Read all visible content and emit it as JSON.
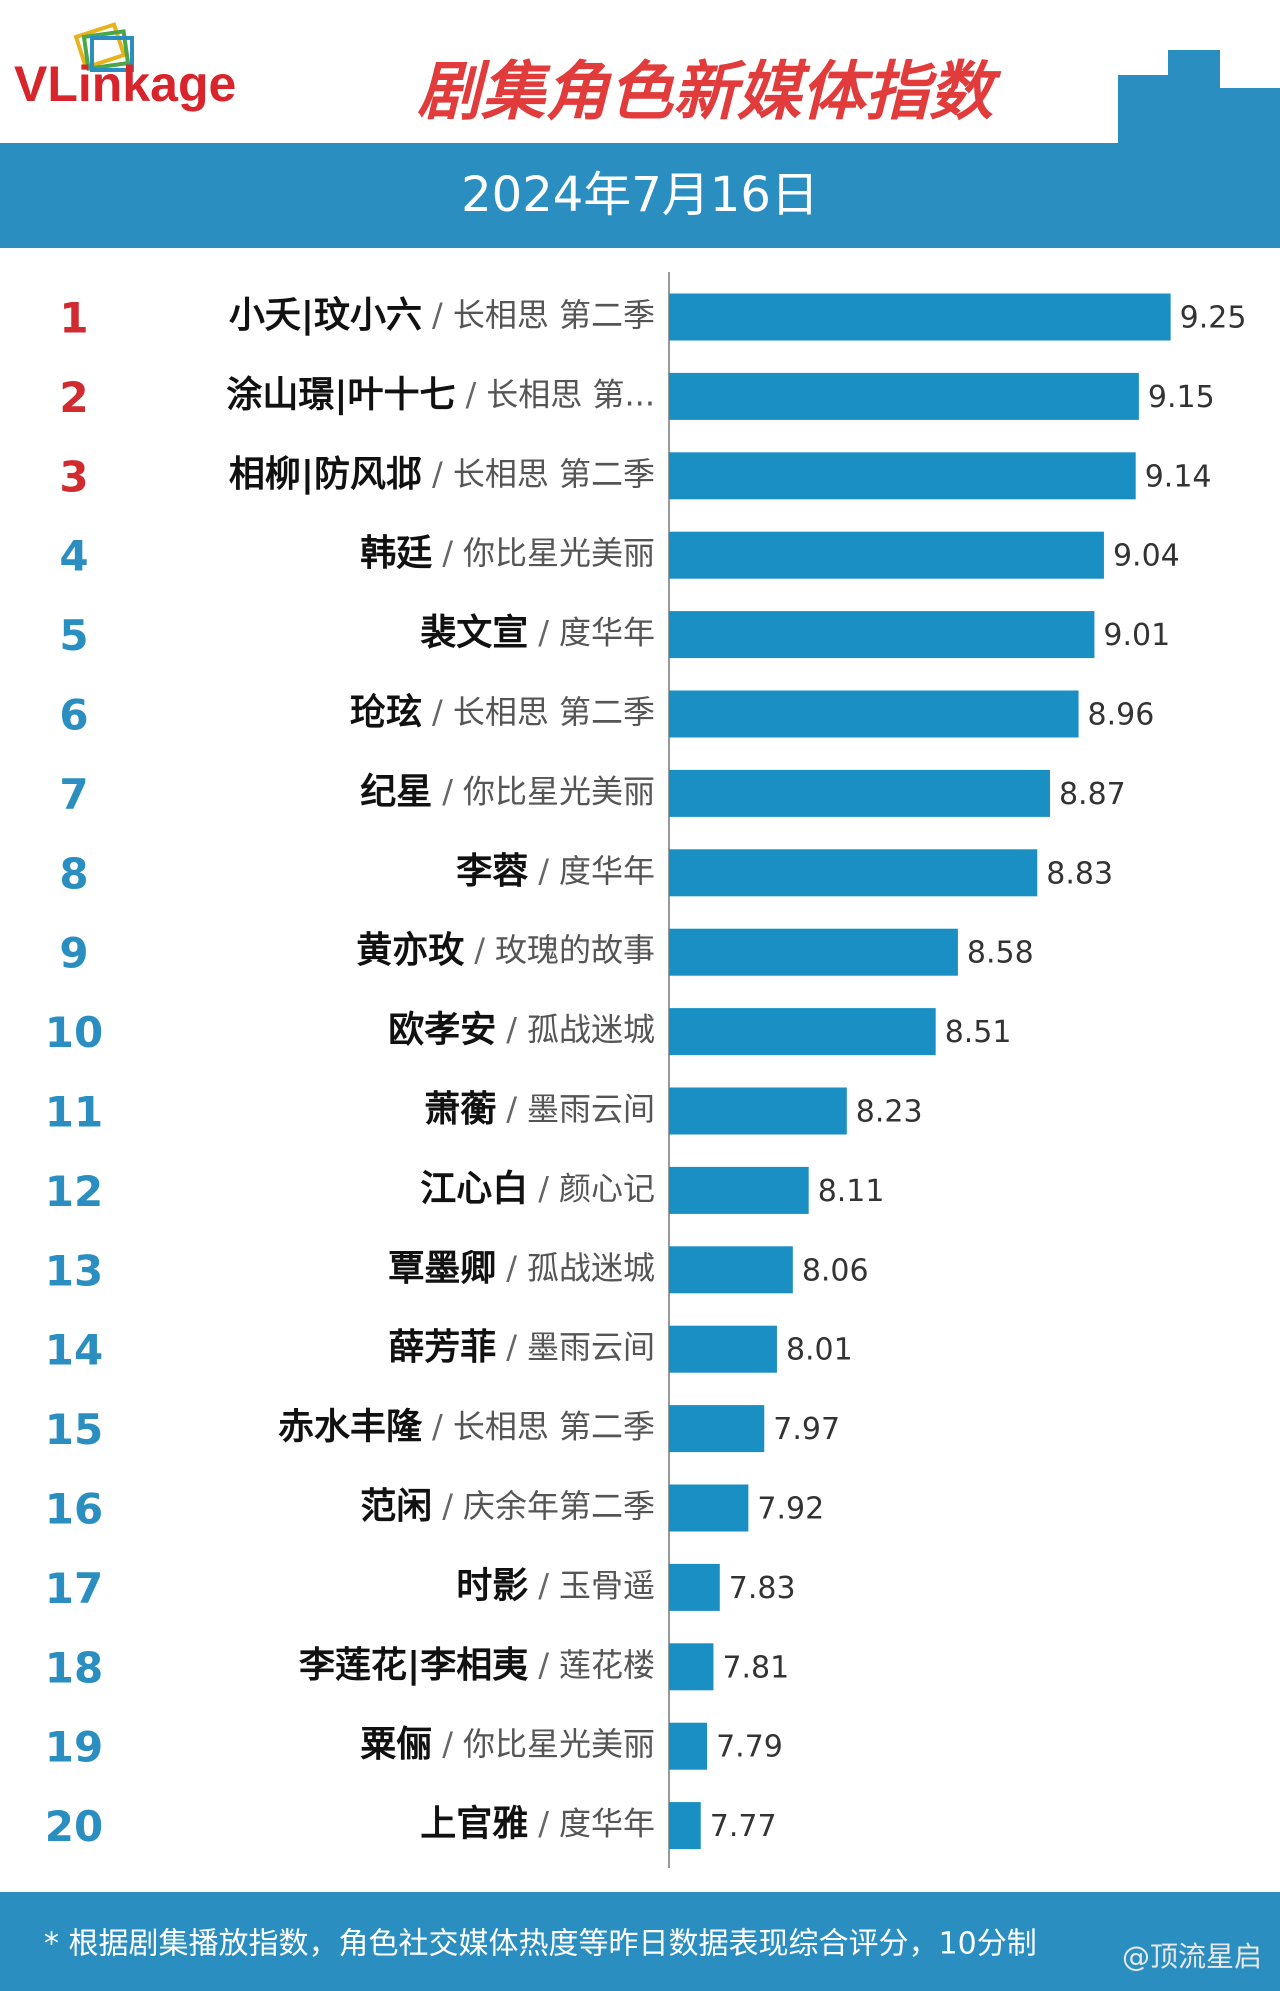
{
  "logo": "VLinkage",
  "footnote": "* 根据剧集播放指数，角色社交媒体热度等昨日数据表现综合评分，10分制",
  "watermark": "@顶流星启",
  "chart_data": {
    "type": "bar",
    "orientation": "horizontal",
    "title": "剧集角色新媒体指数",
    "subtitle": "2024年7月16日",
    "separator": "/",
    "ranks": [
      1,
      2,
      3,
      4,
      5,
      6,
      7,
      8,
      9,
      10,
      11,
      12,
      13,
      14,
      15,
      16,
      17,
      18,
      19,
      20
    ],
    "categories": [
      "小夭|玟小六",
      "涂山璟|叶十七",
      "相柳|防风邶",
      "韩廷",
      "裴文宣",
      "玱玹",
      "纪星",
      "李蓉",
      "黄亦玫",
      "欧孝安",
      "萧蘅",
      "江心白",
      "覃墨卿",
      "薛芳菲",
      "赤水丰隆",
      "范闲",
      "时影",
      "李莲花|李相夷",
      "粟俪",
      "上官雅"
    ],
    "shows": [
      "长相思 第二季",
      "长相思 第...",
      "长相思 第二季",
      "你比星光美丽",
      "度华年",
      "长相思 第二季",
      "你比星光美丽",
      "度华年",
      "玫瑰的故事",
      "孤战迷城",
      "墨雨云间",
      "颜心记",
      "孤战迷城",
      "墨雨云间",
      "长相思 第二季",
      "庆余年第二季",
      "玉骨遥",
      "莲花楼",
      "你比星光美丽",
      "度华年"
    ],
    "values": [
      9.25,
      9.15,
      9.14,
      9.04,
      9.01,
      8.96,
      8.87,
      8.83,
      8.58,
      8.51,
      8.23,
      8.11,
      8.06,
      8.01,
      7.97,
      7.92,
      7.83,
      7.81,
      7.79,
      7.77
    ],
    "xlim": [
      7.67,
      9.5
    ],
    "color": "#1a8fc4",
    "top_rank_color": "#d12a2f",
    "rank_color": "#2a8fc0"
  }
}
